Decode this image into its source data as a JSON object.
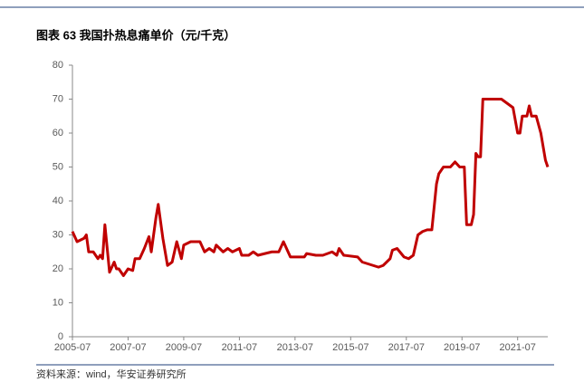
{
  "chart_data": {
    "type": "line",
    "title": "图表 63 我国扑热息痛单价（元/千克）",
    "source": "资料来源：wind，华安证券研究所",
    "x": [
      "2005-07",
      "2005-09",
      "2005-12",
      "2006-01",
      "2006-02",
      "2006-04",
      "2006-06",
      "2006-07",
      "2006-08",
      "2006-09",
      "2006-10",
      "2006-11",
      "2007-01",
      "2007-02",
      "2007-03",
      "2007-05",
      "2007-07",
      "2007-09",
      "2007-10",
      "2007-12",
      "2008-02",
      "2008-04",
      "2008-05",
      "2008-07",
      "2008-08",
      "2008-10",
      "2008-12",
      "2009-02",
      "2009-04",
      "2009-06",
      "2009-07",
      "2009-10",
      "2010-02",
      "2010-04",
      "2010-06",
      "2010-08",
      "2010-09",
      "2010-12",
      "2011-02",
      "2011-04",
      "2011-07",
      "2011-08",
      "2011-11",
      "2012-01",
      "2012-03",
      "2012-06",
      "2012-09",
      "2012-12",
      "2013-02",
      "2013-04",
      "2013-05",
      "2013-11",
      "2013-12",
      "2014-04",
      "2014-07",
      "2014-11",
      "2015-01",
      "2015-02",
      "2015-04",
      "2015-10",
      "2015-12",
      "2016-07",
      "2016-09",
      "2016-12",
      "2017-01",
      "2017-03",
      "2017-06",
      "2017-08",
      "2017-10",
      "2017-12",
      "2018-02",
      "2018-04",
      "2018-06",
      "2018-08",
      "2018-09",
      "2018-11",
      "2019-02",
      "2019-04",
      "2019-06",
      "2019-08",
      "2019-09",
      "2019-11",
      "2019-12",
      "2020-01",
      "2020-02",
      "2020-03",
      "2020-04",
      "2020-12",
      "2021-05",
      "2021-07",
      "2021-08",
      "2021-09",
      "2021-11",
      "2021-12",
      "2022-01",
      "2022-03",
      "2022-05",
      "2022-07",
      "2022-08"
    ],
    "series": [
      {
        "name": "扑热息痛单价",
        "color": "#c00000",
        "values": [
          31,
          28,
          29,
          30,
          25,
          25,
          23,
          24,
          23,
          33,
          26,
          19,
          22,
          20,
          20,
          18,
          20,
          19.5,
          23,
          23,
          26,
          29.5,
          25,
          35,
          39,
          29,
          21,
          22,
          28,
          23,
          27,
          28,
          28,
          25,
          26,
          25,
          27,
          25,
          26,
          25,
          26,
          24,
          24,
          25,
          24,
          24.5,
          25,
          25,
          28,
          25,
          23.5,
          23.5,
          24.5,
          24,
          24,
          25,
          24,
          26,
          24,
          23.5,
          22,
          20.5,
          21,
          23,
          25.5,
          26,
          23.5,
          23,
          24,
          30,
          31,
          31.5,
          31.5,
          45,
          48,
          50,
          50,
          51.5,
          50,
          50,
          33,
          33,
          36,
          54,
          53,
          53,
          70,
          70,
          67.5,
          60,
          60,
          65,
          65,
          68,
          65,
          65,
          60,
          52,
          50
        ]
      }
    ],
    "xlim": [
      "2005-07",
      "2022-08"
    ],
    "xticks": [
      "2005-07",
      "2007-07",
      "2009-07",
      "2011-07",
      "2013-07",
      "2015-07",
      "2017-07",
      "2019-07",
      "2021-07"
    ],
    "ylim": [
      0,
      80
    ],
    "yticks": [
      0,
      10,
      20,
      30,
      40,
      50,
      60,
      70,
      80
    ],
    "grid": false
  }
}
